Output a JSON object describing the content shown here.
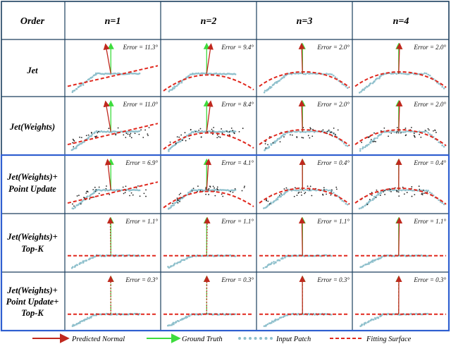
{
  "header": {
    "corner": "Order",
    "columns": [
      "n=1",
      "n=2",
      "n=3",
      "n=4"
    ]
  },
  "rows": [
    {
      "label": [
        "Jet"
      ],
      "errors": [
        "11.3",
        "9.4",
        "2.0",
        "2.0"
      ]
    },
    {
      "label": [
        "Jet(Weights)"
      ],
      "errors": [
        "11.0",
        "8.4",
        "2.0",
        "2.0"
      ]
    },
    {
      "label": [
        "Jet(Weights)+",
        "Point Update"
      ],
      "errors": [
        "6.9",
        "4.1",
        "0.4",
        "0.4"
      ]
    },
    {
      "label": [
        "Jet(Weights)+",
        "Top-K"
      ],
      "errors": [
        "1.1",
        "1.1",
        "1.1",
        "1.1"
      ]
    },
    {
      "label": [
        "Jet(Weights)+",
        "Point Update+",
        "Top-K"
      ],
      "errors": [
        "0.3",
        "0.3",
        "0.3",
        "0.3"
      ]
    }
  ],
  "error_prefix": "Error = ",
  "error_unit": "°",
  "legend": {
    "predicted": "Predicted Normal",
    "ground_truth": "Ground Truth",
    "input_patch": "Input Patch",
    "fitting_surface": "Fitting Surface"
  },
  "colors": {
    "predicted": "#c0281e",
    "ground_truth": "#3ddc3d",
    "patch": "#8fc0cc",
    "surface": "#e0281e",
    "grid": "#1c3f5e",
    "highlight": "#2f5fd0"
  }
}
